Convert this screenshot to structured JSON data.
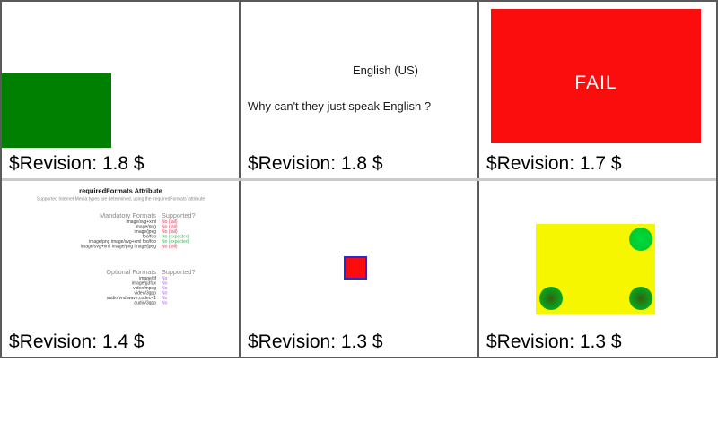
{
  "grid": {
    "border_color": "#5a5a5a",
    "row_divider_color": "#cbcbcb"
  },
  "cells": [
    {
      "name": "green-rect-test",
      "rect_color": "#008000",
      "revision": "$Revision: 1.8 $"
    },
    {
      "name": "language-test",
      "heading": "English (US)",
      "sentence": "Why can't they just speak English ?",
      "revision": "$Revision: 1.8 $"
    },
    {
      "name": "fail-test",
      "fail_label": "FAIL",
      "rect_color": "#fb0d0d",
      "text_color": "#ffffff",
      "revision": "$Revision: 1.7 $"
    },
    {
      "name": "requiredFormats-test",
      "title": "requiredFormats Attribute",
      "subtitle": "Supported Internet Media types are determined, using the 'requiredFormats' attribute",
      "header_color": "#8a8a8a",
      "subtitle_color": "#8a8a8a",
      "label_color": "#3a3a3a",
      "status_colors": {
        "fail": "#dd3355",
        "expected": "#3faf62",
        "no": "#a06bd8"
      },
      "mandatory": {
        "header": "Mandatory Formats",
        "supported_header": "Supported?",
        "rows": [
          {
            "label": "image/svg+xml",
            "value": "No (fail)"
          },
          {
            "label": "image/png",
            "value": "No (fail)"
          },
          {
            "label": "image/jpeg",
            "value": "No (fail)"
          },
          {
            "label": "foo/foo",
            "value": "No (expected)"
          },
          {
            "label": "image/png image/svg+xml foo/foo",
            "value": "No (expected)"
          },
          {
            "label": "image/svg+xml image/png image/jpeg",
            "value": "No (fail)"
          }
        ]
      },
      "optional": {
        "header": "Optional Formats",
        "supported_header": "Supported?",
        "rows": [
          {
            "label": "image/tif",
            "value": "No"
          },
          {
            "label": "image/g3fax",
            "value": "No"
          },
          {
            "label": "video/mpeg",
            "value": "No"
          },
          {
            "label": "video/3gpp",
            "value": "No"
          },
          {
            "label": "audio/vnd.wave;codec=1",
            "value": "No"
          },
          {
            "label": "audio/3gpp",
            "value": "No"
          }
        ]
      },
      "revision": "$Revision: 1.4 $"
    },
    {
      "name": "red-square-test",
      "fill": "#fb0d0d",
      "stroke": "#2a2ad4",
      "revision": "$Revision: 1.3 $"
    },
    {
      "name": "gradient-circles-test",
      "rect_color": "#f6f600",
      "circle_green": "#00c42c",
      "revision": "$Revision: 1.3 $"
    }
  ]
}
